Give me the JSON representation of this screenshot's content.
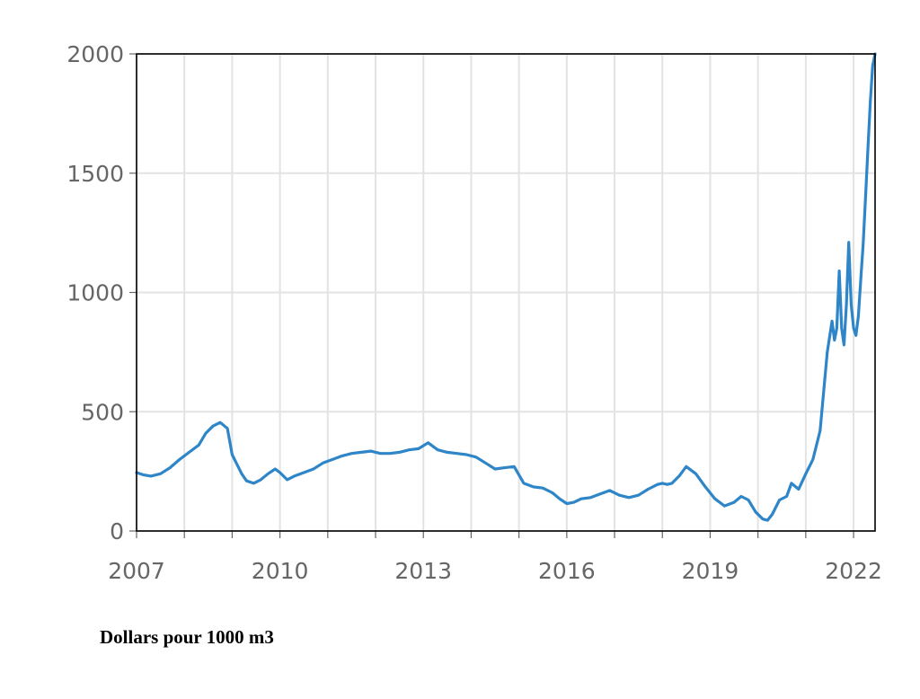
{
  "chart_data": {
    "type": "line",
    "title": "",
    "xlabel": "",
    "ylabel": "",
    "caption": "Dollars pour 1000 m3",
    "xlim": [
      2007.0,
      2022.45
    ],
    "ylim": [
      0,
      2000
    ],
    "x_ticks": [
      2007,
      2010,
      2013,
      2016,
      2019,
      2022
    ],
    "x_tick_labels": [
      "2007",
      "2010",
      "2013",
      "2016",
      "2019",
      "2022"
    ],
    "y_ticks": [
      0,
      500,
      1000,
      1500,
      2000
    ],
    "y_tick_labels": [
      "0",
      "500",
      "1000",
      "1500",
      "2000"
    ],
    "grid": true,
    "legend": "none",
    "colors": {
      "line": "#2e86c8",
      "grid": "#e3e3e3",
      "frame": "#000000",
      "ticks": "#666666"
    },
    "series": [
      {
        "x": [
          2007.0,
          2007.15,
          2007.3,
          2007.5,
          2007.7,
          2007.9,
          2008.1,
          2008.3,
          2008.45,
          2008.6,
          2008.75,
          2008.9,
          2009.0,
          2009.1,
          2009.2,
          2009.3,
          2009.45,
          2009.6,
          2009.75,
          2009.9,
          2010.0,
          2010.15,
          2010.3,
          2010.5,
          2010.7,
          2010.9,
          2011.1,
          2011.3,
          2011.5,
          2011.7,
          2011.9,
          2012.1,
          2012.3,
          2012.5,
          2012.7,
          2012.9,
          2013.1,
          2013.3,
          2013.5,
          2013.7,
          2013.9,
          2014.1,
          2014.3,
          2014.5,
          2014.7,
          2014.9,
          2015.1,
          2015.3,
          2015.5,
          2015.7,
          2015.85,
          2016.0,
          2016.15,
          2016.3,
          2016.5,
          2016.7,
          2016.9,
          2017.1,
          2017.3,
          2017.5,
          2017.7,
          2017.9,
          2018.0,
          2018.1,
          2018.2,
          2018.35,
          2018.5,
          2018.7,
          2018.9,
          2019.1,
          2019.3,
          2019.5,
          2019.65,
          2019.8,
          2019.95,
          2020.1,
          2020.2,
          2020.3,
          2020.45,
          2020.6,
          2020.7,
          2020.85,
          2021.0,
          2021.15,
          2021.3,
          2021.45,
          2021.55,
          2021.6,
          2021.65,
          2021.7,
          2021.75,
          2021.8,
          2021.85,
          2021.9,
          2021.95,
          2022.0,
          2022.05,
          2022.1,
          2022.15,
          2022.2,
          2022.25,
          2022.3,
          2022.35,
          2022.4,
          2022.45
        ],
        "y": [
          245,
          235,
          230,
          240,
          265,
          300,
          330,
          360,
          410,
          440,
          455,
          430,
          320,
          280,
          240,
          210,
          200,
          215,
          240,
          260,
          245,
          215,
          230,
          245,
          260,
          285,
          300,
          315,
          325,
          330,
          335,
          325,
          325,
          330,
          340,
          345,
          370,
          340,
          330,
          325,
          320,
          310,
          285,
          260,
          265,
          270,
          200,
          185,
          180,
          160,
          135,
          115,
          120,
          135,
          140,
          155,
          170,
          150,
          140,
          150,
          175,
          195,
          200,
          195,
          200,
          230,
          270,
          240,
          185,
          135,
          105,
          120,
          145,
          130,
          80,
          50,
          45,
          70,
          130,
          145,
          200,
          175,
          240,
          300,
          420,
          750,
          880,
          800,
          850,
          1090,
          850,
          780,
          950,
          1210,
          950,
          850,
          820,
          900,
          1050,
          1200,
          1400,
          1600,
          1800,
          1950,
          2000
        ]
      }
    ]
  }
}
